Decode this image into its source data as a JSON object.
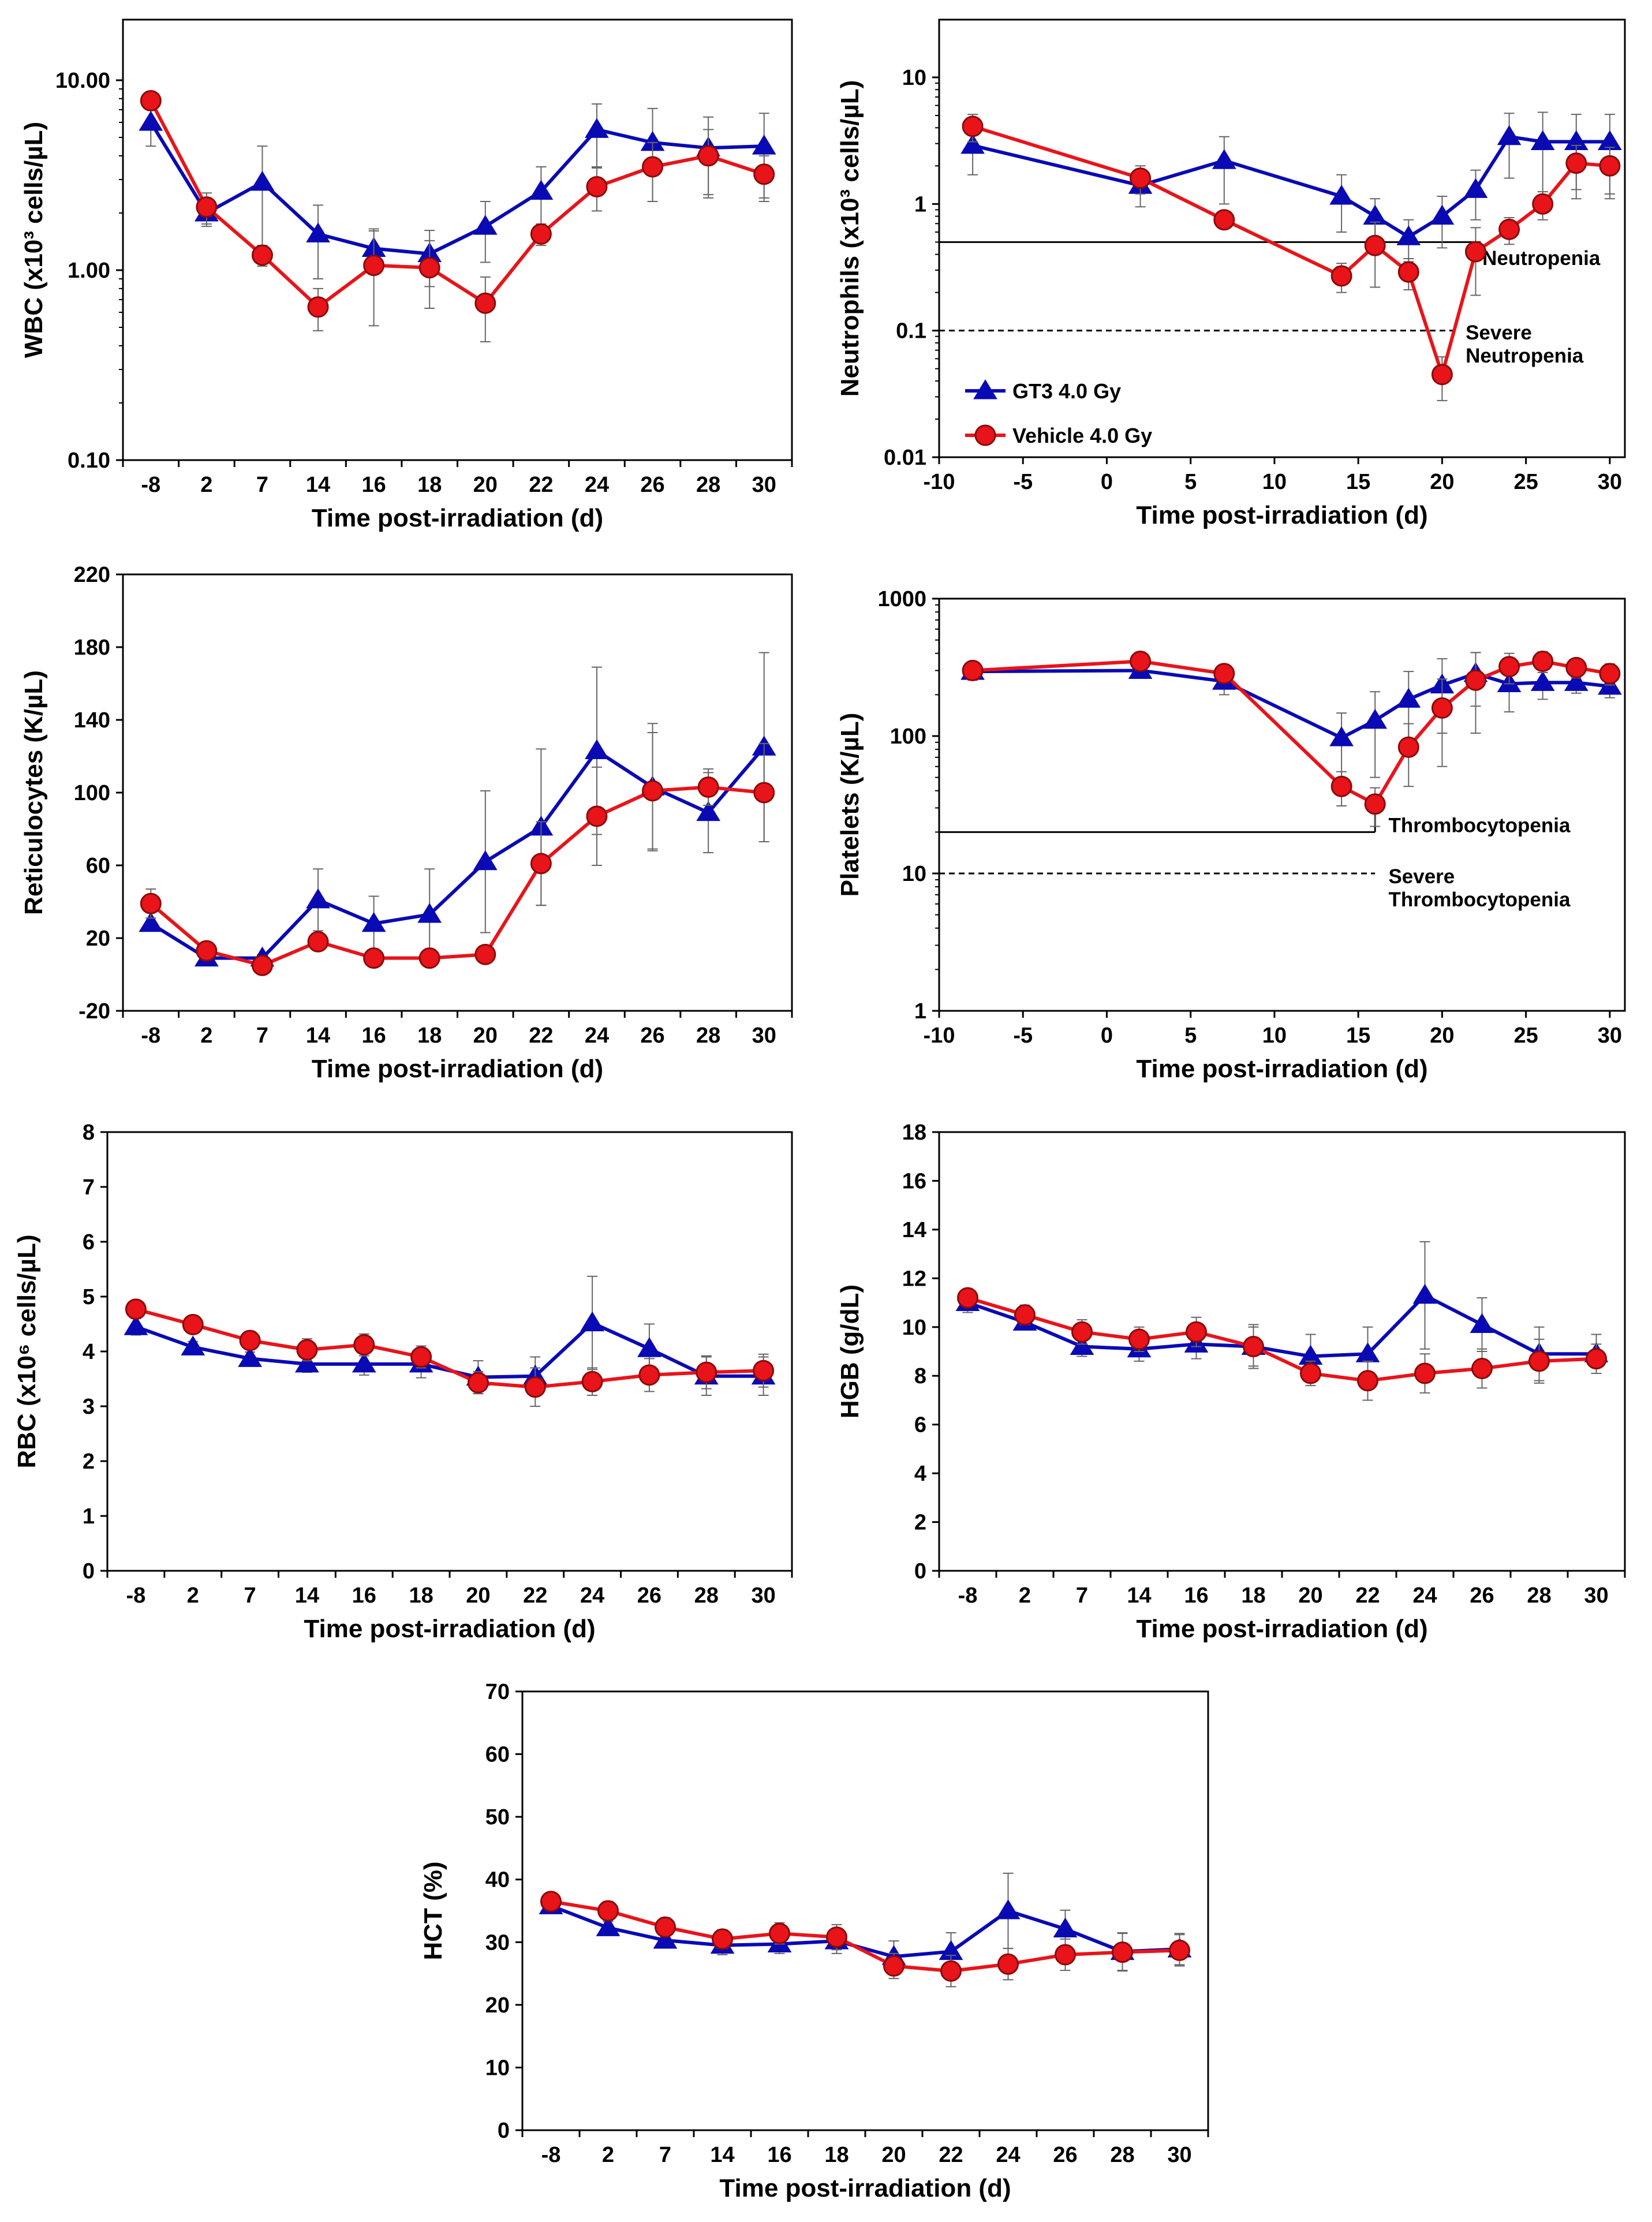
{
  "styles": {
    "gt3_color": "#0a0ab4",
    "vehicle_color": "#e8141a",
    "errorbar_color": "#666666",
    "frame_color": "#000000"
  },
  "legend": {
    "gt3_label": "GT3 4.0 Gy",
    "vehicle_label": "Vehicle 4.0 Gy"
  },
  "chart_data": [
    {
      "id": "wbc",
      "type": "line",
      "scale": "log",
      "x_kind": "category",
      "categories": [
        "-8",
        "2",
        "7",
        "14",
        "16",
        "18",
        "20",
        "22",
        "24",
        "26",
        "28",
        "30"
      ],
      "y_ticks": [
        0.1,
        1,
        10
      ],
      "y_tick_labels": [
        "0.10",
        "1.00",
        "10.00"
      ],
      "ylim": [
        0.1,
        20
      ],
      "xlabel": "Time post-irradiation (d)",
      "ylabel": "WBC (x10³ cells/µL)",
      "show_legend": false,
      "series": [
        {
          "name": "GT3 4.0 Gy",
          "values": [
            6.0,
            2.0,
            2.9,
            1.55,
            1.3,
            1.22,
            1.7,
            2.6,
            5.5,
            4.7,
            4.4,
            4.5
          ],
          "errors": [
            1.5,
            0.3,
            1.6,
            0.65,
            0.35,
            0.4,
            0.6,
            0.9,
            2.0,
            2.4,
            2.0,
            2.2
          ]
        },
        {
          "name": "Vehicle 4.0 Gy",
          "values": [
            7.8,
            2.15,
            1.2,
            0.64,
            1.06,
            1.03,
            0.67,
            1.55,
            2.75,
            3.5,
            4.0,
            3.2
          ],
          "errors": [
            0.8,
            0.4,
            0.15,
            0.16,
            0.55,
            0.4,
            0.25,
            0.2,
            0.7,
            1.2,
            1.5,
            0.8
          ]
        }
      ],
      "thresholds": [],
      "annotations": []
    },
    {
      "id": "neutrophils",
      "type": "line",
      "scale": "log",
      "x_kind": "numeric",
      "xlim": [
        -10,
        30
      ],
      "x_ticks": [
        -10,
        -5,
        0,
        5,
        10,
        15,
        20,
        25,
        30
      ],
      "x_tick_labels": [
        "-10",
        "-5",
        "0",
        "5",
        "10",
        "15",
        "20",
        "25",
        "30"
      ],
      "y_ticks": [
        0.01,
        0.1,
        1,
        10
      ],
      "y_tick_labels": [
        "0.01",
        "0.1",
        "1",
        "10"
      ],
      "ylim": [
        0.01,
        20
      ],
      "xlabel": "Time post-irradiation (d)",
      "ylabel": "Neutrophils (x10³ cells/µL)",
      "show_legend": true,
      "series": [
        {
          "name": "GT3 4.0 Gy",
          "x": [
            -8,
            2,
            7,
            14,
            16,
            18,
            20,
            22,
            24,
            26,
            28,
            30
          ],
          "values": [
            2.9,
            1.4,
            2.2,
            1.15,
            0.8,
            0.55,
            0.8,
            1.3,
            3.4,
            3.1,
            3.1,
            3.1
          ],
          "errors": [
            1.2,
            0.45,
            1.2,
            0.55,
            0.3,
            0.2,
            0.35,
            0.55,
            1.8,
            2.2,
            2.0,
            2.0
          ]
        },
        {
          "name": "Vehicle 4.0 Gy",
          "x": [
            -8,
            2,
            7,
            14,
            16,
            18,
            20,
            22,
            24,
            26,
            28,
            30
          ],
          "values": [
            4.1,
            1.6,
            0.75,
            0.27,
            0.47,
            0.29,
            0.045,
            0.42,
            0.63,
            1.0,
            2.1,
            2.0
          ],
          "errors": [
            1.0,
            0.4,
            0.1,
            0.07,
            0.25,
            0.08,
            0.017,
            0.23,
            0.15,
            0.25,
            0.8,
            0.8
          ]
        }
      ],
      "thresholds": [
        {
          "value": 0.5,
          "x_end": 22.3,
          "style": "solid"
        },
        {
          "value": 0.1,
          "x_end": 21.0,
          "style": "dashed"
        }
      ],
      "annotations": [
        {
          "lines": [
            "Neutropenia"
          ],
          "x": 22.4,
          "y": 0.33
        },
        {
          "lines": [
            "Severe",
            "Neutropenia"
          ],
          "x": 21.4,
          "y": 0.085
        }
      ]
    },
    {
      "id": "reticulocytes",
      "type": "line",
      "scale": "linear",
      "x_kind": "category",
      "categories": [
        "-8",
        "2",
        "7",
        "14",
        "16",
        "18",
        "20",
        "22",
        "24",
        "26",
        "28",
        "30"
      ],
      "y_ticks": [
        -20,
        20,
        60,
        100,
        140,
        180,
        220
      ],
      "y_tick_labels": [
        "-20",
        "20",
        "60",
        "100",
        "140",
        "180",
        "220"
      ],
      "ylim": [
        -20,
        220
      ],
      "xlabel": "Time post-irradiation (d)",
      "ylabel": "Reticulocytes (K/µL)",
      "show_legend": false,
      "series": [
        {
          "name": "GT3 4.0 Gy",
          "values": [
            28,
            9,
            9,
            41,
            28,
            33,
            62,
            81,
            123,
            103,
            89,
            125
          ],
          "errors": [
            3,
            3,
            2,
            17,
            15,
            25,
            39,
            43,
            46,
            35,
            22,
            52
          ]
        },
        {
          "name": "Vehicle 4.0 Gy",
          "values": [
            39,
            13,
            5,
            18,
            9,
            9,
            11,
            61,
            87,
            101,
            103,
            100
          ],
          "errors": [
            8,
            3,
            2,
            3,
            3,
            3,
            3,
            23,
            27,
            32,
            10,
            27
          ]
        }
      ],
      "thresholds": [],
      "annotations": []
    },
    {
      "id": "platelets",
      "type": "line",
      "scale": "log",
      "x_kind": "numeric",
      "xlim": [
        -10,
        30
      ],
      "x_ticks": [
        -10,
        -5,
        0,
        5,
        10,
        15,
        20,
        25,
        30
      ],
      "x_tick_labels": [
        "-10",
        "-5",
        "0",
        "5",
        "10",
        "15",
        "20",
        "25",
        "30"
      ],
      "y_ticks": [
        1,
        10,
        100,
        1000
      ],
      "y_tick_labels": [
        "1",
        "10",
        "100",
        "1000"
      ],
      "ylim": [
        1,
        1000
      ],
      "xlabel": "Time post-irradiation (d)",
      "ylabel": "Platelets (K/µL)",
      "show_legend": false,
      "series": [
        {
          "name": "GT3 4.0 Gy",
          "x": [
            -8,
            2,
            7,
            14,
            16,
            18,
            20,
            22,
            24,
            26,
            28,
            30
          ],
          "values": [
            295,
            300,
            250,
            97,
            130,
            185,
            235,
            285,
            240,
            245,
            245,
            230
          ],
          "errors": [
            40,
            30,
            50,
            50,
            80,
            110,
            130,
            120,
            90,
            60,
            40,
            40
          ]
        },
        {
          "name": "Vehicle 4.0 Gy",
          "x": [
            -8,
            2,
            7,
            14,
            16,
            18,
            20,
            22,
            24,
            26,
            28,
            30
          ],
          "values": [
            300,
            350,
            285,
            43,
            32,
            83,
            160,
            255,
            320,
            350,
            315,
            285
          ],
          "errors": [
            40,
            30,
            40,
            12,
            10,
            40,
            100,
            150,
            80,
            60,
            50,
            50
          ]
        }
      ],
      "thresholds": [
        {
          "value": 20,
          "x_end": 16,
          "style": "solid"
        },
        {
          "value": 10,
          "x_end": 16,
          "style": "dashed"
        }
      ],
      "annotations": [
        {
          "lines": [
            "Thrombocytopenia"
          ],
          "x": 16.8,
          "y": 20
        },
        {
          "lines": [
            "Severe",
            "Thrombocytopenia"
          ],
          "x": 16.8,
          "y": 8.5
        }
      ]
    },
    {
      "id": "rbc",
      "type": "line",
      "scale": "linear",
      "x_kind": "category",
      "categories": [
        "-8",
        "2",
        "7",
        "14",
        "16",
        "18",
        "20",
        "22",
        "24",
        "26",
        "28",
        "30"
      ],
      "y_ticks": [
        0,
        1,
        2,
        3,
        4,
        5,
        6,
        7,
        8
      ],
      "y_tick_labels": [
        "0",
        "1",
        "2",
        "3",
        "4",
        "5",
        "6",
        "7",
        "8"
      ],
      "ylim": [
        0,
        8
      ],
      "xlabel": "Time post-irradiation (d)",
      "ylabel": "RBC (x10⁶ cells/µL)",
      "show_legend": false,
      "series": [
        {
          "name": "GT3 4.0 Gy",
          "values": [
            4.45,
            4.08,
            3.87,
            3.77,
            3.77,
            3.77,
            3.53,
            3.55,
            4.52,
            4.05,
            3.55,
            3.55
          ],
          "errors": [
            0.15,
            0.1,
            0.12,
            0.15,
            0.2,
            0.25,
            0.3,
            0.35,
            0.85,
            0.45,
            0.35,
            0.35
          ]
        },
        {
          "name": "Vehicle 4.0 Gy",
          "values": [
            4.77,
            4.49,
            4.2,
            4.03,
            4.12,
            3.9,
            3.43,
            3.35,
            3.45,
            3.57,
            3.62,
            3.65
          ],
          "errors": [
            0.15,
            0.15,
            0.12,
            0.2,
            0.2,
            0.2,
            0.2,
            0.35,
            0.25,
            0.3,
            0.3,
            0.3
          ]
        }
      ],
      "thresholds": [],
      "annotations": []
    },
    {
      "id": "hgb",
      "type": "line",
      "scale": "linear",
      "x_kind": "category",
      "categories": [
        "-8",
        "2",
        "7",
        "14",
        "16",
        "18",
        "20",
        "22",
        "24",
        "26",
        "28",
        "30"
      ],
      "y_ticks": [
        0,
        2,
        4,
        6,
        8,
        10,
        12,
        14,
        16,
        18
      ],
      "y_tick_labels": [
        "0",
        "2",
        "4",
        "6",
        "8",
        "10",
        "12",
        "14",
        "16",
        "18"
      ],
      "ylim": [
        0,
        18
      ],
      "xlabel": "Time post-irradiation (d)",
      "ylabel": "HGB (g/dL)",
      "show_legend": false,
      "series": [
        {
          "name": "GT3 4.0 Gy",
          "values": [
            11.0,
            10.2,
            9.2,
            9.1,
            9.3,
            9.2,
            8.8,
            8.9,
            11.3,
            10.1,
            8.9,
            8.9
          ],
          "errors": [
            0.4,
            0.3,
            0.4,
            0.5,
            0.6,
            0.9,
            0.9,
            1.1,
            2.2,
            1.1,
            1.1,
            0.8
          ]
        },
        {
          "name": "Vehicle 4.0 Gy",
          "values": [
            11.2,
            10.5,
            9.8,
            9.5,
            9.8,
            9.2,
            8.1,
            7.8,
            8.1,
            8.3,
            8.6,
            8.7
          ],
          "errors": [
            0.3,
            0.4,
            0.5,
            0.5,
            0.6,
            0.8,
            0.5,
            0.8,
            0.8,
            0.8,
            0.9,
            0.6
          ]
        }
      ],
      "thresholds": [],
      "annotations": []
    },
    {
      "id": "hct",
      "type": "line",
      "scale": "linear",
      "x_kind": "category",
      "categories": [
        "-8",
        "2",
        "7",
        "14",
        "16",
        "18",
        "20",
        "22",
        "24",
        "26",
        "28",
        "30"
      ],
      "y_ticks": [
        0,
        10,
        20,
        30,
        40,
        50,
        60,
        70
      ],
      "y_tick_labels": [
        "0",
        "10",
        "20",
        "30",
        "40",
        "50",
        "60",
        "70"
      ],
      "ylim": [
        0,
        70
      ],
      "xlabel": "Time post-irradiation (d)",
      "ylabel": "HCT (%)",
      "show_legend": false,
      "series": [
        {
          "name": "GT3 4.0 Gy",
          "values": [
            35.8,
            32.3,
            30.3,
            29.5,
            29.7,
            30.2,
            27.7,
            28.5,
            35.0,
            32.1,
            28.5,
            28.9
          ],
          "errors": [
            1.0,
            1.0,
            1.2,
            1.5,
            1.5,
            2.0,
            2.5,
            3.0,
            6.0,
            3.0,
            3.0,
            2.5
          ]
        },
        {
          "name": "Vehicle 4.0 Gy",
          "values": [
            36.5,
            35.0,
            32.4,
            30.5,
            31.4,
            30.8,
            26.2,
            25.4,
            26.5,
            28.0,
            28.4,
            28.7
          ],
          "errors": [
            1.0,
            1.5,
            1.5,
            1.5,
            1.7,
            2.0,
            2.0,
            2.5,
            2.5,
            2.5,
            3.0,
            2.5
          ]
        }
      ],
      "thresholds": [],
      "annotations": []
    }
  ]
}
